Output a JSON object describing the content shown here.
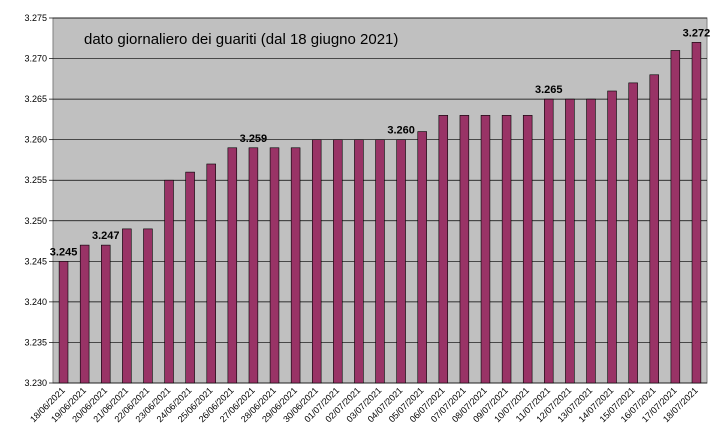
{
  "chart_data": {
    "type": "bar",
    "title": "dato giornaliero dei guariti (dal 18 giugno 2021)",
    "xlabel": "",
    "ylabel": "",
    "ylim": [
      3.23,
      3.275
    ],
    "yticks": [
      "3.230",
      "3.235",
      "3.240",
      "3.245",
      "3.250",
      "3.255",
      "3.260",
      "3.265",
      "3.270",
      "3.275"
    ],
    "grid": true,
    "categories": [
      "18/06/2021",
      "19/06/2021",
      "20/06/2021",
      "21/06/2021",
      "22/06/2021",
      "23/06/2021",
      "24/06/2021",
      "25/06/2021",
      "26/06/2021",
      "27/06/2021",
      "28/06/2021",
      "29/06/2021",
      "30/06/2021",
      "01/07/2021",
      "02/07/2021",
      "03/07/2021",
      "04/07/2021",
      "05/07/2021",
      "06/07/2021",
      "07/07/2021",
      "08/07/2021",
      "09/07/2021",
      "10/07/2021",
      "11/07/2021",
      "12/07/2021",
      "13/07/2021",
      "14/07/2021",
      "15/07/2021",
      "16/07/2021",
      "17/07/2021",
      "18/07/2021"
    ],
    "values": [
      3.245,
      3.247,
      3.247,
      3.249,
      3.249,
      3.255,
      3.256,
      3.257,
      3.259,
      3.259,
      3.259,
      3.259,
      3.26,
      3.26,
      3.26,
      3.26,
      3.26,
      3.261,
      3.263,
      3.263,
      3.263,
      3.263,
      3.263,
      3.265,
      3.265,
      3.265,
      3.266,
      3.267,
      3.268,
      3.271,
      3.272
    ],
    "data_labels": [
      {
        "index": 0,
        "text": "3.245"
      },
      {
        "index": 2,
        "text": "3.247"
      },
      {
        "index": 9,
        "text": "3.259"
      },
      {
        "index": 16,
        "text": "3.260"
      },
      {
        "index": 23,
        "text": "3.265"
      },
      {
        "index": 30,
        "text": "3.272"
      }
    ],
    "colors": {
      "bar": "#993366",
      "plot_background": "#c0c0c0",
      "gridline": "#000000"
    }
  }
}
